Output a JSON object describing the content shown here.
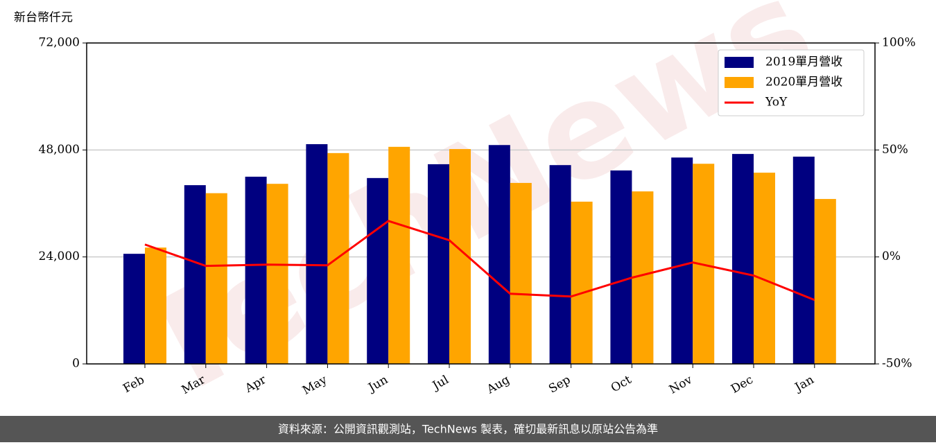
{
  "chart_data": {
    "type": "bar-line",
    "y_label": "新台幣仟元",
    "watermark": "TechNews",
    "footer": "資料來源：公開資訊觀測站，TechNews 製表，確切最新訊息以原站公告為準",
    "categories": [
      "Feb",
      "Mar",
      "Apr",
      "May",
      "Jun",
      "Jul",
      "Aug",
      "Sep",
      "Oct",
      "Nov",
      "Dec",
      "Jan"
    ],
    "series": [
      {
        "name": "2019單月營收",
        "color": "#000080",
        "type": "bar",
        "values": [
          24700,
          40100,
          42000,
          49300,
          41700,
          44800,
          49100,
          44600,
          43400,
          46300,
          47100,
          46500
        ]
      },
      {
        "name": "2020單月營收",
        "color": "#ffa500",
        "type": "bar",
        "values": [
          26100,
          38300,
          40400,
          47300,
          48700,
          48200,
          40600,
          36400,
          38700,
          44900,
          42900,
          37000
        ]
      },
      {
        "name": "YoY",
        "color": "#ff0000",
        "type": "line",
        "axis": "y2",
        "values": [
          5.8,
          -4.2,
          -3.6,
          -3.9,
          16.8,
          7.8,
          -17.2,
          -18.5,
          -9.7,
          -2.6,
          -8.7,
          -20.1
        ]
      }
    ],
    "ylim": [
      0,
      72000
    ],
    "yticks": [
      0,
      {
        "value": 24000,
        "label": "24,000"
      },
      {
        "value": 48000,
        "label": "48,000"
      },
      {
        "value": 72000,
        "label": "72,000"
      }
    ],
    "y2lim": [
      -50,
      100
    ],
    "y2ticks": [
      {
        "value": -50,
        "label": "-50%"
      },
      {
        "value": 0,
        "label": "0%"
      },
      {
        "value": 50,
        "label": "50%"
      },
      {
        "value": 100,
        "label": "100%"
      }
    ],
    "grid": true,
    "legend": "upper right"
  }
}
